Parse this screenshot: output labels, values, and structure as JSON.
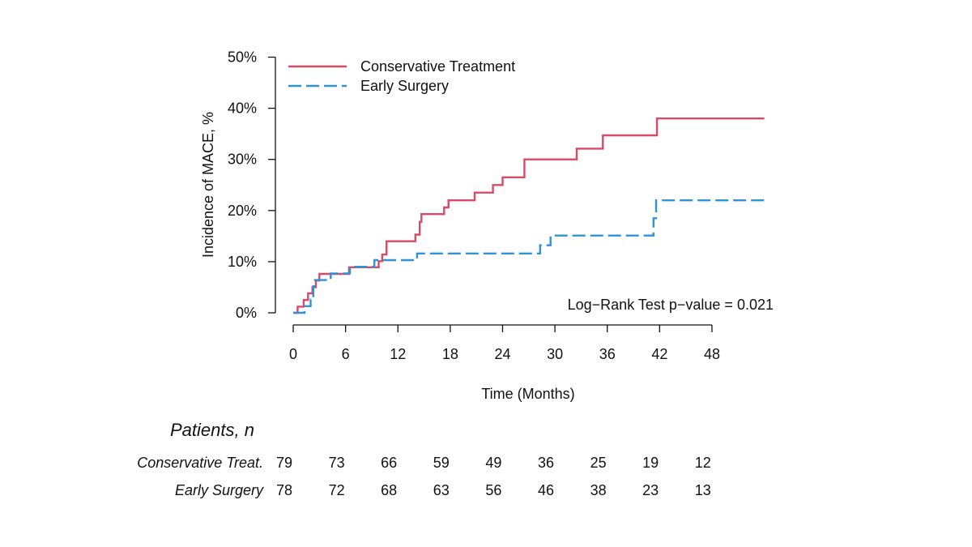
{
  "chart_data": {
    "type": "line",
    "subtype": "kaplan-meier-cumulative-incidence",
    "xlabel": "Time (Months)",
    "ylabel": "Incidence of MACE, %",
    "x_ticks": [
      0,
      6,
      12,
      18,
      24,
      30,
      36,
      42,
      48
    ],
    "y_ticks": [
      0,
      10,
      20,
      30,
      40,
      50
    ],
    "y_tick_labels": [
      "0%",
      "10%",
      "20%",
      "30%",
      "40%",
      "50%"
    ],
    "xlim": [
      0,
      48
    ],
    "ylim": [
      0,
      50
    ],
    "legend_position": "top-left",
    "grid": false,
    "annotation": "Log−Rank Test p−value = 0.021",
    "series": [
      {
        "name": "Conservative Treatment",
        "color": "#d94a64",
        "line_style": "solid",
        "steps": [
          [
            0,
            0
          ],
          [
            0.5,
            0
          ],
          [
            0.5,
            1.2
          ],
          [
            1.2,
            1.2
          ],
          [
            1.2,
            2.5
          ],
          [
            1.7,
            2.5
          ],
          [
            1.7,
            3.8
          ],
          [
            2.2,
            3.8
          ],
          [
            2.2,
            5.0
          ],
          [
            2.6,
            5.0
          ],
          [
            2.6,
            6.3
          ],
          [
            3.0,
            6.3
          ],
          [
            3.0,
            7.6
          ],
          [
            6.4,
            7.6
          ],
          [
            6.4,
            8.9
          ],
          [
            9.8,
            8.9
          ],
          [
            9.8,
            10.1
          ],
          [
            10.2,
            10.1
          ],
          [
            10.2,
            11.4
          ],
          [
            10.7,
            11.4
          ],
          [
            10.7,
            14.0
          ],
          [
            14.0,
            14.0
          ],
          [
            14.0,
            15.3
          ],
          [
            14.5,
            15.3
          ],
          [
            14.5,
            17.8
          ],
          [
            14.7,
            17.8
          ],
          [
            14.7,
            19.3
          ],
          [
            17.3,
            19.3
          ],
          [
            17.3,
            20.6
          ],
          [
            17.8,
            20.6
          ],
          [
            17.8,
            22.0
          ],
          [
            20.8,
            22.0
          ],
          [
            20.8,
            23.5
          ],
          [
            22.9,
            23.5
          ],
          [
            22.9,
            25.0
          ],
          [
            24.0,
            25.0
          ],
          [
            24.0,
            26.5
          ],
          [
            26.5,
            26.5
          ],
          [
            26.5,
            30.0
          ],
          [
            32.5,
            30.0
          ],
          [
            32.5,
            32.1
          ],
          [
            35.5,
            32.1
          ],
          [
            35.5,
            34.7
          ],
          [
            41.7,
            34.7
          ],
          [
            41.7,
            38.0
          ],
          [
            54.0,
            38.0
          ]
        ]
      },
      {
        "name": "Early Surgery",
        "color": "#2e93d8",
        "line_style": "dashed",
        "steps": [
          [
            0,
            0
          ],
          [
            1.3,
            0
          ],
          [
            1.3,
            1.3
          ],
          [
            2.0,
            1.3
          ],
          [
            2.0,
            2.6
          ],
          [
            2.3,
            2.6
          ],
          [
            2.3,
            5.2
          ],
          [
            2.5,
            5.2
          ],
          [
            2.5,
            6.4
          ],
          [
            4.3,
            6.4
          ],
          [
            4.3,
            7.7
          ],
          [
            6.5,
            7.7
          ],
          [
            6.5,
            9.0
          ],
          [
            9.3,
            9.0
          ],
          [
            9.3,
            10.3
          ],
          [
            14.2,
            10.3
          ],
          [
            14.2,
            11.6
          ],
          [
            28.3,
            11.6
          ],
          [
            28.3,
            13.2
          ],
          [
            29.5,
            13.2
          ],
          [
            29.5,
            15.1
          ],
          [
            41.3,
            15.1
          ],
          [
            41.3,
            18.5
          ],
          [
            41.6,
            18.5
          ],
          [
            41.6,
            22.0
          ],
          [
            54.0,
            22.0
          ]
        ]
      }
    ]
  },
  "risk_table": {
    "title": "Patients, n",
    "rows": [
      {
        "label": "Conservative Treat.",
        "values": [
          "79",
          "73",
          "66",
          "59",
          "49",
          "36",
          "25",
          "19",
          "12"
        ]
      },
      {
        "label": "Early Surgery",
        "values": [
          "78",
          "72",
          "68",
          "63",
          "56",
          "46",
          "38",
          "23",
          "13"
        ]
      }
    ]
  }
}
